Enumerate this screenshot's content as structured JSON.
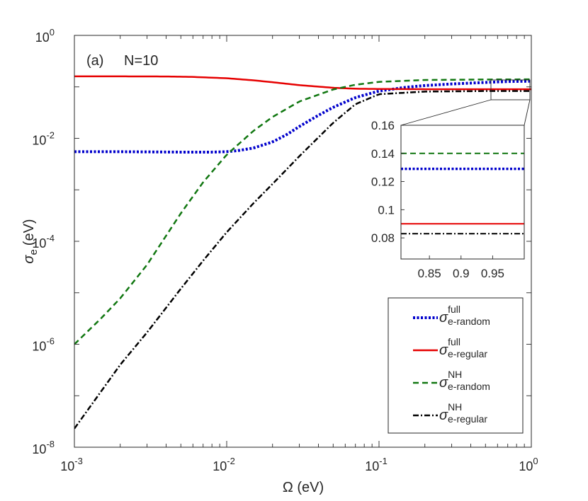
{
  "chart_data": {
    "type": "line",
    "panel_label": "(a)",
    "annotation": "N=10",
    "xlabel": {
      "symbol": "Ω",
      "unit": "(eV)"
    },
    "ylabel": {
      "symbol": "σ",
      "sub": "e",
      "unit": "(eV)"
    },
    "xscale": "log",
    "yscale": "log",
    "xlim": [
      0.001,
      1
    ],
    "ylim": [
      1e-08,
      1
    ],
    "xticks": [
      {
        "value": 0.001,
        "base": "10",
        "exp": "-3"
      },
      {
        "value": 0.01,
        "base": "10",
        "exp": "-2"
      },
      {
        "value": 0.1,
        "base": "10",
        "exp": "-1"
      },
      {
        "value": 1,
        "base": "10",
        "exp": "0"
      }
    ],
    "yticks": [
      {
        "value": 1e-08,
        "base": "10",
        "exp": "-8"
      },
      {
        "value": 1e-06,
        "base": "10",
        "exp": "-6"
      },
      {
        "value": 0.0001,
        "base": "10",
        "exp": "-4"
      },
      {
        "value": 0.01,
        "base": "10",
        "exp": "-2"
      },
      {
        "value": 1,
        "base": "10",
        "exp": "0"
      }
    ],
    "series": [
      {
        "name": "full e-random",
        "symbol": "σ",
        "sup": "full",
        "sub": "e-random",
        "color": "#0000cc",
        "style": "dotted",
        "x": [
          0.001,
          0.002,
          0.005,
          0.008,
          0.01,
          0.012,
          0.015,
          0.02,
          0.025,
          0.03,
          0.04,
          0.05,
          0.07,
          0.1,
          0.15,
          0.2,
          0.3,
          0.5,
          0.7,
          1.0
        ],
        "y": [
          0.0055,
          0.0055,
          0.0054,
          0.0054,
          0.0055,
          0.0058,
          0.0065,
          0.0085,
          0.012,
          0.017,
          0.028,
          0.04,
          0.062,
          0.083,
          0.098,
          0.106,
          0.114,
          0.122,
          0.127,
          0.129
        ]
      },
      {
        "name": "full e-regular",
        "symbol": "σ",
        "sup": "full",
        "sub": "e-regular",
        "color": "#e60000",
        "style": "solid",
        "x": [
          0.001,
          0.002,
          0.004,
          0.006,
          0.01,
          0.015,
          0.02,
          0.03,
          0.05,
          0.07,
          0.1,
          0.2,
          0.5,
          1.0
        ],
        "y": [
          0.16,
          0.16,
          0.159,
          0.156,
          0.147,
          0.134,
          0.123,
          0.108,
          0.096,
          0.092,
          0.091,
          0.09,
          0.09,
          0.09
        ]
      },
      {
        "name": "NH e-random",
        "symbol": "σ",
        "sup": "NH",
        "sub": "e-random",
        "color": "#117711",
        "style": "dashed",
        "x": [
          0.001,
          0.0015,
          0.002,
          0.003,
          0.005,
          0.007,
          0.01,
          0.015,
          0.02,
          0.03,
          0.05,
          0.07,
          0.1,
          0.2,
          0.5,
          1.0
        ],
        "y": [
          1e-06,
          3.2e-06,
          7.8e-06,
          3.5e-05,
          0.00035,
          0.0014,
          0.0048,
          0.014,
          0.026,
          0.052,
          0.089,
          0.11,
          0.125,
          0.136,
          0.139,
          0.14
        ]
      },
      {
        "name": "NH e-regular",
        "symbol": "σ",
        "sup": "NH",
        "sub": "e-regular",
        "color": "#000000",
        "style": "dashdot",
        "x": [
          0.001,
          0.002,
          0.003,
          0.005,
          0.007,
          0.01,
          0.015,
          0.02,
          0.03,
          0.05,
          0.07,
          0.1,
          0.2,
          0.5,
          1.0
        ],
        "y": [
          2.3e-08,
          4e-07,
          1.7e-06,
          1.2e-05,
          4.2e-05,
          0.00015,
          0.00055,
          0.0013,
          0.0045,
          0.02,
          0.046,
          0.072,
          0.081,
          0.083,
          0.083
        ]
      }
    ],
    "inset": {
      "xlim": [
        0.805,
        1.0
      ],
      "ylim": [
        0.065,
        0.16
      ],
      "xticks": [
        "0.85",
        "0.9",
        "0.95"
      ],
      "yticks": [
        "0.08",
        "0.1",
        "0.12",
        "0.14",
        "0.16"
      ],
      "values": {
        "full e-random": 0.129,
        "full e-regular": 0.09,
        "NH e-random": 0.14,
        "NH e-regular": 0.083
      }
    },
    "legend": {
      "position": "bottom-right"
    }
  }
}
